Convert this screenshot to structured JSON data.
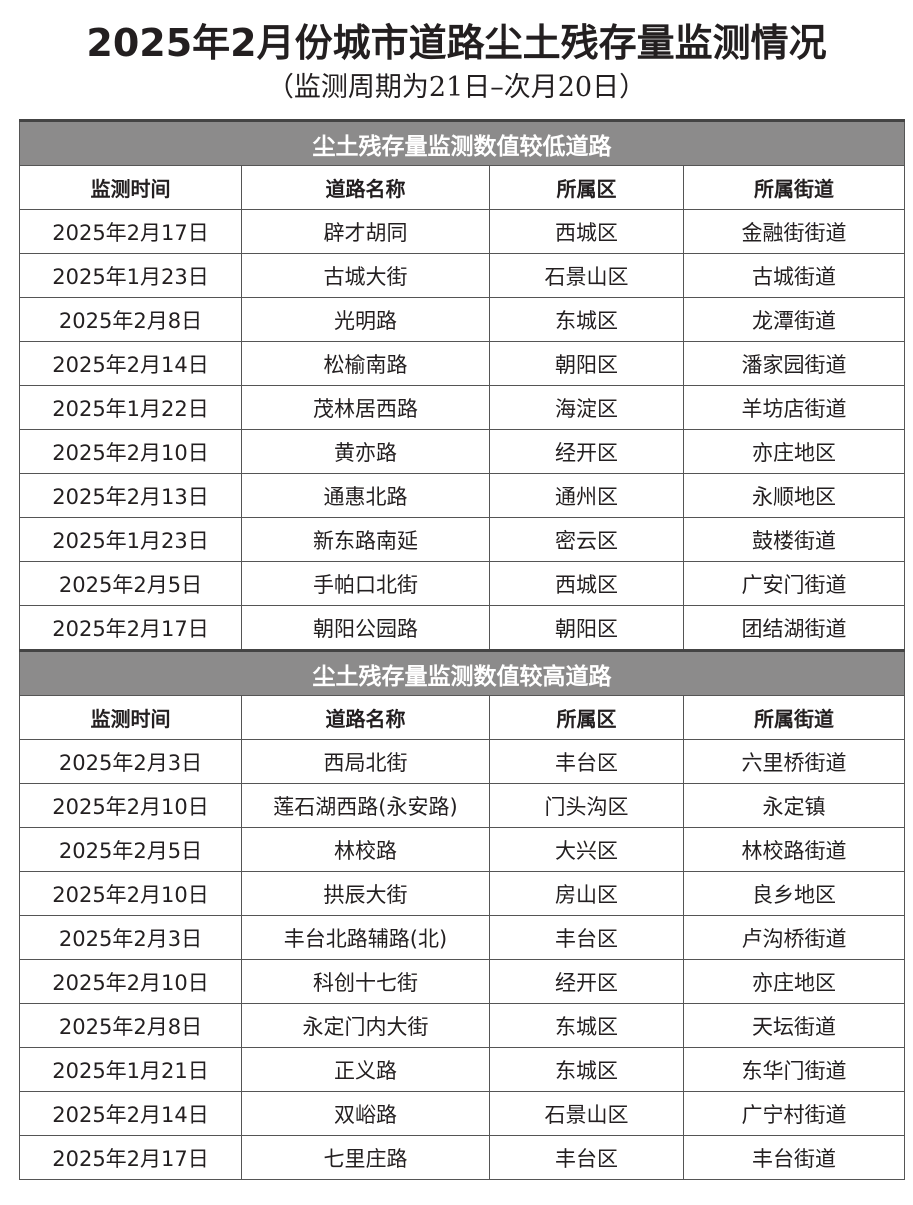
{
  "title": "2025年2月份城市道路尘土残存量监测情况",
  "subtitle": "（监测周期为21日–次月20日）",
  "columns": [
    "监测时间",
    "道路名称",
    "所属区",
    "所属街道"
  ],
  "sections": [
    {
      "heading": "尘土残存量监测数值较低道路",
      "rows": [
        [
          "2025年2月17日",
          "辟才胡同",
          "西城区",
          "金融街街道"
        ],
        [
          "2025年1月23日",
          "古城大街",
          "石景山区",
          "古城街道"
        ],
        [
          "2025年2月8日",
          "光明路",
          "东城区",
          "龙潭街道"
        ],
        [
          "2025年2月14日",
          "松榆南路",
          "朝阳区",
          "潘家园街道"
        ],
        [
          "2025年1月22日",
          "茂林居西路",
          "海淀区",
          "羊坊店街道"
        ],
        [
          "2025年2月10日",
          "黄亦路",
          "经开区",
          "亦庄地区"
        ],
        [
          "2025年2月13日",
          "通惠北路",
          "通州区",
          "永顺地区"
        ],
        [
          "2025年1月23日",
          "新东路南延",
          "密云区",
          "鼓楼街道"
        ],
        [
          "2025年2月5日",
          "手帕口北街",
          "西城区",
          "广安门街道"
        ],
        [
          "2025年2月17日",
          "朝阳公园路",
          "朝阳区",
          "团结湖街道"
        ]
      ]
    },
    {
      "heading": "尘土残存量监测数值较高道路",
      "rows": [
        [
          "2025年2月3日",
          "西局北街",
          "丰台区",
          "六里桥街道"
        ],
        [
          "2025年2月10日",
          "莲石湖西路(永安路)",
          "门头沟区",
          "永定镇"
        ],
        [
          "2025年2月5日",
          "林校路",
          "大兴区",
          "林校路街道"
        ],
        [
          "2025年2月10日",
          "拱辰大街",
          "房山区",
          "良乡地区"
        ],
        [
          "2025年2月3日",
          "丰台北路辅路(北)",
          "丰台区",
          "卢沟桥街道"
        ],
        [
          "2025年2月10日",
          "科创十七街",
          "经开区",
          "亦庄地区"
        ],
        [
          "2025年2月8日",
          "永定门内大街",
          "东城区",
          "天坛街道"
        ],
        [
          "2025年1月21日",
          "正义路",
          "东城区",
          "东华门街道"
        ],
        [
          "2025年2月14日",
          "双峪路",
          "石景山区",
          "广宁村街道"
        ],
        [
          "2025年2月17日",
          "七里庄路",
          "丰台区",
          "丰台街道"
        ]
      ]
    }
  ]
}
